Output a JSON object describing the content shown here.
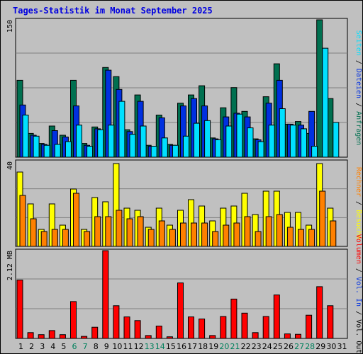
{
  "title": "Tages-Statistik im Monat September 2025",
  "colors": {
    "hits": "#007050",
    "files": "#0030e0",
    "pages": "#00e0ff",
    "visits": "#ffff00",
    "kbytes": "#ff8000",
    "volume": "#ff0000",
    "weekend": "#00805c",
    "weekday": "#000000",
    "title": "#0000e0"
  },
  "legend": {
    "top": [
      {
        "text": "Anfragen",
        "color": "#007050"
      },
      {
        "text": "/",
        "color": "#000000"
      },
      {
        "text": "Dateien",
        "color": "#0030e0"
      },
      {
        "text": "/",
        "color": "#000000"
      },
      {
        "text": "Seiten",
        "color": "#00e0ff"
      }
    ],
    "middle": [
      {
        "text": "Besuche",
        "color": "#ffff00"
      },
      {
        "text": "/",
        "color": "#000000"
      },
      {
        "text": "Rechner",
        "color": "#ff8000"
      }
    ],
    "bottom": [
      {
        "text": "Vol. Out",
        "color": "#000000"
      },
      {
        "text": "/",
        "color": "#000000"
      },
      {
        "text": "Vol. In",
        "color": "#0030e0"
      },
      {
        "text": "/",
        "color": "#000000"
      },
      {
        "text": "Volumen",
        "color": "#ff0000"
      }
    ]
  },
  "chart_data": [
    {
      "type": "bar",
      "panel": "requests",
      "ymax_label": "150",
      "ylim": [
        0,
        150
      ],
      "categories": [
        "1",
        "2",
        "3",
        "4",
        "5",
        "6",
        "7",
        "8",
        "9",
        "10",
        "11",
        "12",
        "13",
        "14",
        "15",
        "16",
        "17",
        "18",
        "19",
        "20",
        "21",
        "22",
        "23",
        "24",
        "25",
        "26",
        "27",
        "28",
        "29",
        "30",
        "31"
      ],
      "weekend_days": [
        "6",
        "7",
        "13",
        "14",
        "20",
        "21",
        "27",
        "28"
      ],
      "series": [
        {
          "name": "Anfragen",
          "color": "#007050",
          "values": [
            84,
            26,
            15,
            34,
            24,
            84,
            15,
            33,
            98,
            88,
            30,
            68,
            13,
            46,
            14,
            59,
            68,
            78,
            21,
            54,
            76,
            50,
            20,
            66,
            102,
            36,
            39,
            26,
            150,
            64,
            0
          ]
        },
        {
          "name": "Dateien",
          "color": "#0030e0",
          "values": [
            57,
            24,
            14,
            29,
            22,
            56,
            13,
            31,
            95,
            74,
            28,
            61,
            12,
            43,
            13,
            56,
            64,
            56,
            20,
            44,
            48,
            44,
            19,
            59,
            84,
            36,
            35,
            50,
            0,
            0,
            0
          ]
        },
        {
          "name": "Seiten",
          "color": "#00e0ff",
          "values": [
            46,
            23,
            13,
            14,
            17,
            35,
            12,
            30,
            35,
            61,
            25,
            34,
            12,
            21,
            13,
            23,
            37,
            40,
            19,
            34,
            47,
            32,
            17,
            35,
            53,
            35,
            31,
            12,
            119,
            38,
            0
          ]
        }
      ]
    },
    {
      "type": "bar",
      "panel": "visits",
      "ymax_label": "40",
      "ylim": [
        0,
        40
      ],
      "categories": [
        "1",
        "2",
        "3",
        "4",
        "5",
        "6",
        "7",
        "8",
        "9",
        "10",
        "11",
        "12",
        "13",
        "14",
        "15",
        "16",
        "17",
        "18",
        "19",
        "20",
        "21",
        "22",
        "23",
        "24",
        "25",
        "26",
        "27",
        "28",
        "29",
        "30",
        "31"
      ],
      "series": [
        {
          "name": "Besuche",
          "color": "#ffff00",
          "values": [
            35,
            20,
            8,
            20,
            10,
            27,
            8,
            23,
            21,
            39,
            18,
            17,
            9,
            18,
            10,
            17,
            22,
            19,
            12,
            18,
            19,
            25,
            15,
            26,
            26,
            16,
            16,
            10,
            39,
            18,
            0
          ]
        },
        {
          "name": "Rechner",
          "color": "#ff8000",
          "values": [
            24,
            13,
            7,
            8,
            8,
            25,
            7,
            14,
            14,
            17,
            13,
            14,
            8,
            12,
            8,
            11,
            11,
            11,
            7,
            10,
            11,
            14,
            7,
            14,
            15,
            9,
            8,
            8,
            26,
            12,
            0
          ]
        }
      ]
    },
    {
      "type": "bar",
      "panel": "volume",
      "ymax_label": "2.12 MB",
      "ylim": [
        0,
        2.12
      ],
      "categories": [
        "1",
        "2",
        "3",
        "4",
        "5",
        "6",
        "7",
        "8",
        "9",
        "10",
        "11",
        "12",
        "13",
        "14",
        "15",
        "16",
        "17",
        "18",
        "19",
        "20",
        "21",
        "22",
        "23",
        "24",
        "25",
        "26",
        "27",
        "28",
        "29",
        "30",
        "31"
      ],
      "series": [
        {
          "name": "Volumen",
          "color": "#ff0000",
          "values": [
            1.41,
            0.14,
            0.09,
            0.19,
            0.09,
            0.89,
            0.05,
            0.27,
            2.12,
            0.79,
            0.52,
            0.43,
            0.07,
            0.3,
            0.04,
            1.34,
            0.52,
            0.47,
            0.07,
            0.53,
            0.95,
            0.61,
            0.14,
            0.53,
            1.05,
            0.11,
            0.1,
            0.56,
            1.25,
            0.79,
            0
          ]
        }
      ]
    }
  ]
}
